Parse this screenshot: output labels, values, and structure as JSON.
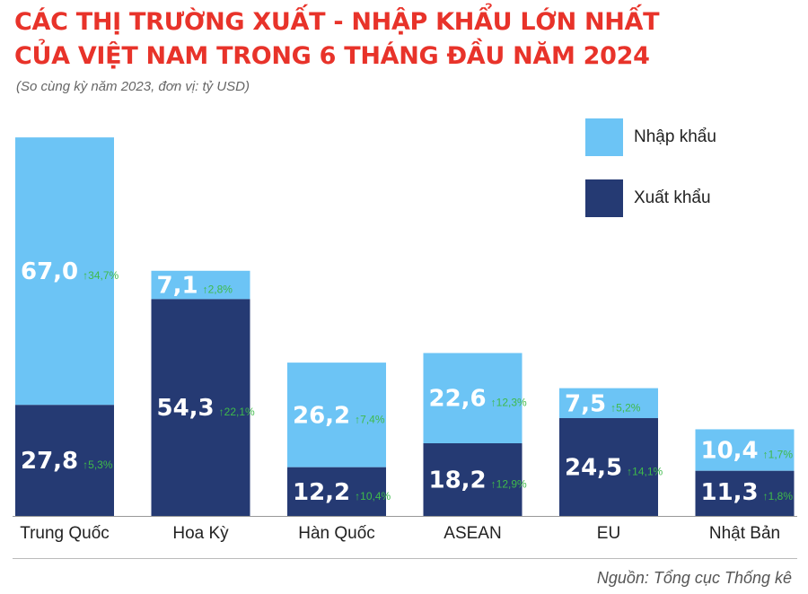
{
  "title_line1": "CÁC THỊ TRƯỜNG XUẤT - NHẬP KHẨU LỚN NHẤT",
  "title_line2": "CỦA VIỆT NAM TRONG 6 THÁNG ĐẦU NĂM 2024",
  "subtitle": "(So cùng kỳ năm 2023, đơn vị: tỷ USD)",
  "source": "Nguồn: Tổng cục Thống kê",
  "colors": {
    "import": "#6cc4f5",
    "export": "#253a73",
    "growth": "#3fba4a",
    "title": "#e8332a",
    "axis": "#999999"
  },
  "chart_data": {
    "type": "bar",
    "stacked": true,
    "categories": [
      "Trung Quốc",
      "Hoa Kỳ",
      "Hàn Quốc",
      "ASEAN",
      "EU",
      "Nhật Bản"
    ],
    "series": [
      {
        "name": "Xuất khẩu",
        "values": [
          27.8,
          54.3,
          12.2,
          18.2,
          24.5,
          11.3
        ],
        "labels": [
          "27,8",
          "54,3",
          "12,2",
          "18,2",
          "24,5",
          "11,3"
        ],
        "growth": [
          "5,3%",
          "22,1%",
          "10,4%",
          "12,9%",
          "14,1%",
          "1,8%"
        ]
      },
      {
        "name": "Nhập khẩu",
        "values": [
          67.0,
          7.1,
          26.2,
          22.6,
          7.5,
          10.4
        ],
        "labels": [
          "67,0",
          "7,1",
          "26,2",
          "22,6",
          "7,5",
          "10,4"
        ],
        "growth": [
          "34,7%",
          "2,8%",
          "7,4%",
          "12,3%",
          "5,2%",
          "1,7%"
        ]
      }
    ],
    "growth_arrow": "↑",
    "legend_position": "top-right",
    "grid": false
  }
}
